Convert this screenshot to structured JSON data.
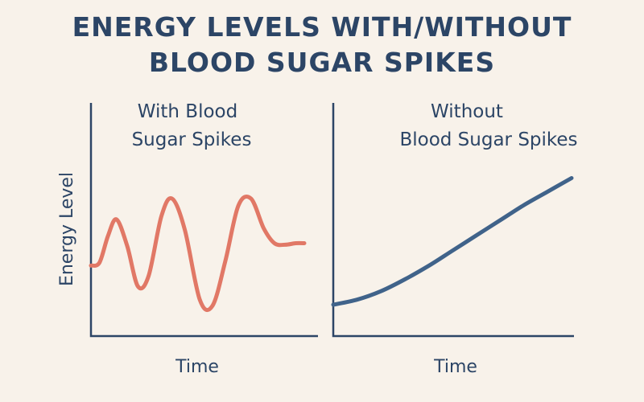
{
  "title_lines": [
    "ENERGY LEVELS WITH/WITHOUT",
    "BLOOD SUGAR SPIKES"
  ],
  "colors": {
    "background": "#f8f2ea",
    "text": "#2c4566",
    "with_spikes_line": "#e17866",
    "without_spikes_line": "#40638a"
  },
  "chart_data": [
    {
      "type": "line",
      "title_lines": [
        "With Blood",
        "Sugar Spikes"
      ],
      "xlabel": "Time",
      "ylabel": "Energy Level",
      "xlim": [
        0,
        100
      ],
      "ylim": [
        0,
        100
      ],
      "series": [
        {
          "x": [
            0,
            4,
            8,
            12,
            17,
            22,
            27,
            33,
            38,
            44,
            51,
            57,
            63,
            69,
            75,
            81,
            86,
            91,
            96,
            100
          ],
          "y": [
            35,
            37,
            55,
            66,
            48,
            21,
            28,
            68,
            80,
            59,
            12,
            8,
            38,
            75,
            80,
            60,
            50,
            49,
            50,
            50
          ]
        }
      ]
    },
    {
      "type": "line",
      "title_lines": [
        "Without",
        "Blood Sugar Spikes"
      ],
      "xlabel": "Time",
      "xlim": [
        0,
        100
      ],
      "ylim": [
        0,
        100
      ],
      "series": [
        {
          "x": [
            0,
            10,
            20,
            30,
            40,
            50,
            60,
            70,
            80,
            90,
            100
          ],
          "y": [
            10,
            13,
            18,
            25,
            33,
            42,
            51,
            60,
            69,
            77,
            85
          ]
        }
      ]
    }
  ]
}
